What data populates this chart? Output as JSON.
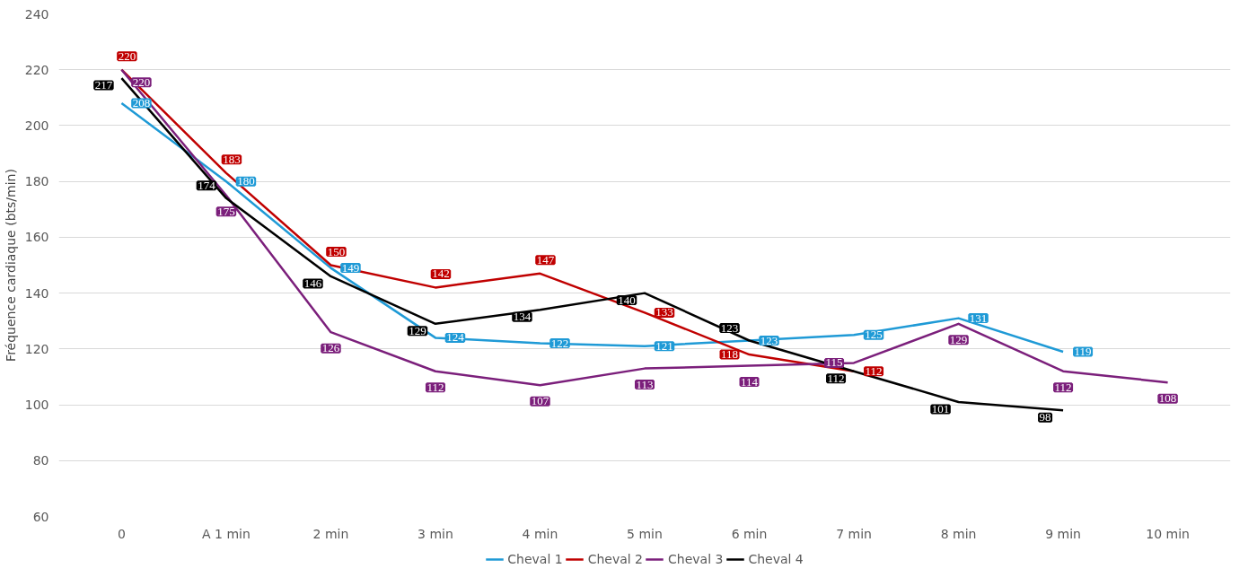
{
  "chart_data": {
    "type": "line",
    "ylabel": "Fréquence cardiaque (bts/min)",
    "categories": [
      "0",
      "A 1 min",
      "2 min",
      "3 min",
      "4 min",
      "5 min",
      "6 min",
      "7 min",
      "8 min",
      "9 min",
      "10 min"
    ],
    "series": [
      {
        "name": "Cheval 1",
        "color": "#1f9ad6",
        "values": [
          208,
          180,
          149,
          124,
          122,
          121,
          123,
          125,
          131,
          119,
          null
        ]
      },
      {
        "name": "Cheval 2",
        "color": "#c00000",
        "values": [
          220,
          183,
          150,
          142,
          147,
          133,
          118,
          112,
          null,
          null,
          null
        ]
      },
      {
        "name": "Cheval 3",
        "color": "#7b1f7b",
        "values": [
          220,
          175,
          126,
          112,
          107,
          113,
          114,
          115,
          129,
          112,
          108
        ]
      },
      {
        "name": "Cheval 4",
        "color": "#000000",
        "values": [
          217,
          174,
          146,
          129,
          134,
          140,
          123,
          112,
          101,
          98,
          null
        ]
      }
    ],
    "ylim": [
      60,
      240
    ],
    "yticks": [
      60,
      80,
      100,
      120,
      140,
      160,
      180,
      200,
      220,
      240
    ],
    "grid": "y",
    "legend": "bottom",
    "marker": "none",
    "line_style": "solid",
    "data_labels": true
  }
}
